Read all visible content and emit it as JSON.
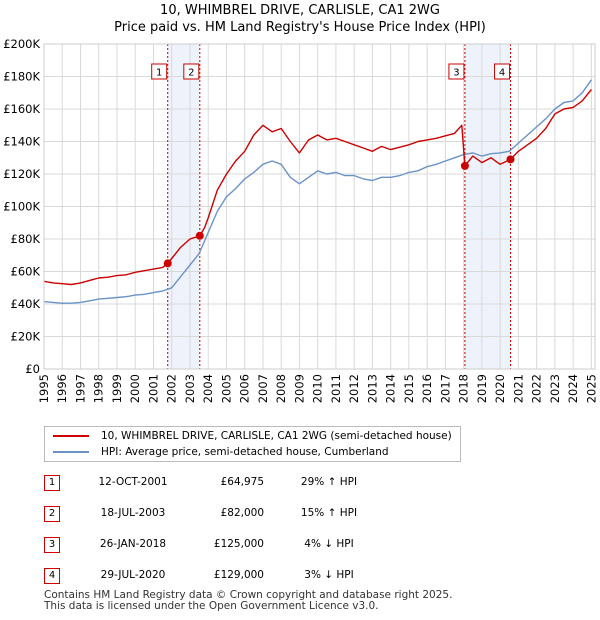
{
  "title_line1": "10, WHIMBREL DRIVE, CARLISLE, CA1 2WG",
  "title_line2": "Price paid vs. HM Land Registry's House Price Index (HPI)",
  "colors": {
    "price_line": "#cc0000",
    "hpi_line": "#6b93c8",
    "band_fill": "#eef2fb",
    "marker": "#cc0000",
    "grid": "#d9d9d9"
  },
  "chart_data": {
    "type": "line",
    "xlim": [
      1995,
      2025.2
    ],
    "ylim": [
      0,
      200000
    ],
    "x_ticks": [
      "1995",
      "1996",
      "1997",
      "1998",
      "1999",
      "2000",
      "2001",
      "2002",
      "2003",
      "2004",
      "2005",
      "2006",
      "2007",
      "2008",
      "2009",
      "2010",
      "2011",
      "2012",
      "2013",
      "2014",
      "2015",
      "2016",
      "2017",
      "2018",
      "2019",
      "2020",
      "2021",
      "2022",
      "2023",
      "2024",
      "2025"
    ],
    "y_ticks": [
      {
        "value": 0,
        "label": "£0"
      },
      {
        "value": 20000,
        "label": "£20K"
      },
      {
        "value": 40000,
        "label": "£40K"
      },
      {
        "value": 60000,
        "label": "£60K"
      },
      {
        "value": 80000,
        "label": "£80K"
      },
      {
        "value": 100000,
        "label": "£100K"
      },
      {
        "value": 120000,
        "label": "£120K"
      },
      {
        "value": 140000,
        "label": "£140K"
      },
      {
        "value": 160000,
        "label": "£160K"
      },
      {
        "value": 180000,
        "label": "£180K"
      },
      {
        "value": 200000,
        "label": "£200K"
      }
    ],
    "series": [
      {
        "name": "10, WHIMBREL DRIVE, CARLISLE, CA1 2WG (semi-detached house)",
        "color": "#cc0000",
        "x": [
          1995.0,
          1995.5,
          1996.0,
          1996.5,
          1997.0,
          1997.5,
          1998.0,
          1998.5,
          1999.0,
          1999.5,
          2000.0,
          2000.5,
          2001.0,
          2001.5,
          2001.78,
          2002.0,
          2002.5,
          2003.0,
          2003.54,
          2003.8,
          2004.0,
          2004.5,
          2005.0,
          2005.5,
          2006.0,
          2006.5,
          2007.0,
          2007.5,
          2008.0,
          2008.5,
          2009.0,
          2009.5,
          2010.0,
          2010.5,
          2011.0,
          2011.5,
          2012.0,
          2012.5,
          2013.0,
          2013.5,
          2014.0,
          2014.5,
          2015.0,
          2015.5,
          2016.0,
          2016.5,
          2017.0,
          2017.5,
          2017.9,
          2018.07,
          2018.5,
          2019.0,
          2019.5,
          2020.0,
          2020.57,
          2021.0,
          2021.5,
          2022.0,
          2022.5,
          2023.0,
          2023.5,
          2024.0,
          2024.5,
          2025.0
        ],
        "y": [
          54000,
          53000,
          52500,
          52000,
          53000,
          54500,
          56000,
          56500,
          57500,
          58000,
          59500,
          60500,
          61500,
          62500,
          64975,
          68000,
          75000,
          80000,
          82000,
          87000,
          93000,
          110000,
          120000,
          128000,
          134000,
          144000,
          150000,
          146000,
          148000,
          140000,
          133000,
          141000,
          144000,
          141000,
          142000,
          140000,
          138000,
          136000,
          134000,
          137000,
          135000,
          136500,
          138000,
          140000,
          141000,
          142000,
          143500,
          145000,
          150000,
          125000,
          131000,
          127000,
          130000,
          126000,
          129000,
          134000,
          138000,
          142000,
          148000,
          157000,
          160000,
          161000,
          165000,
          172000
        ]
      },
      {
        "name": "HPI: Average price, semi-detached house, Cumberland",
        "color": "#6b93c8",
        "x": [
          1995.0,
          1995.5,
          1996.0,
          1996.5,
          1997.0,
          1997.5,
          1998.0,
          1998.5,
          1999.0,
          1999.5,
          2000.0,
          2000.5,
          2001.0,
          2001.5,
          2002.0,
          2002.5,
          2003.0,
          2003.5,
          2004.0,
          2004.5,
          2005.0,
          2005.5,
          2006.0,
          2006.5,
          2007.0,
          2007.5,
          2008.0,
          2008.5,
          2009.0,
          2009.5,
          2010.0,
          2010.5,
          2011.0,
          2011.5,
          2012.0,
          2012.5,
          2013.0,
          2013.5,
          2014.0,
          2014.5,
          2015.0,
          2015.5,
          2016.0,
          2016.5,
          2017.0,
          2017.5,
          2018.0,
          2018.5,
          2019.0,
          2019.5,
          2020.0,
          2020.5,
          2021.0,
          2021.5,
          2022.0,
          2022.5,
          2023.0,
          2023.5,
          2024.0,
          2024.5,
          2025.0
        ],
        "y": [
          41500,
          41000,
          40500,
          40500,
          41000,
          42000,
          43000,
          43500,
          44000,
          44500,
          45500,
          46000,
          47000,
          48000,
          50000,
          57000,
          64000,
          71000,
          84000,
          97000,
          106000,
          111000,
          117000,
          121000,
          126000,
          128000,
          126000,
          118000,
          114000,
          118000,
          122000,
          120000,
          121000,
          119000,
          119000,
          117000,
          116000,
          118000,
          118000,
          119000,
          121000,
          122000,
          124500,
          126000,
          128000,
          130000,
          132000,
          133000,
          131000,
          132500,
          133000,
          134000,
          139000,
          144000,
          149000,
          154000,
          160000,
          164000,
          165000,
          170000,
          178000
        ]
      }
    ],
    "transactions": [
      {
        "id": "1",
        "date": "12-OCT-2001",
        "x": 2001.78,
        "price": "£64,975",
        "value": 64975,
        "hpi": "29% ↑ HPI"
      },
      {
        "id": "2",
        "date": "18-JUL-2003",
        "x": 2003.54,
        "price": "£82,000",
        "value": 82000,
        "hpi": "15% ↑ HPI"
      },
      {
        "id": "3",
        "date": "26-JAN-2018",
        "x": 2018.07,
        "price": "£125,000",
        "value": 125000,
        "hpi": "4% ↓ HPI"
      },
      {
        "id": "4",
        "date": "29-JUL-2020",
        "x": 2020.57,
        "price": "£129,000",
        "value": 129000,
        "hpi": "3% ↓ HPI"
      }
    ],
    "shaded_bands": [
      [
        2001.78,
        2003.54
      ],
      [
        2018.07,
        2020.57
      ]
    ]
  },
  "legend": {
    "price_label": "10, WHIMBREL DRIVE, CARLISLE, CA1 2WG (semi-detached house)",
    "hpi_label": "HPI: Average price, semi-detached house, Cumberland"
  },
  "footer": {
    "line1": "Contains HM Land Registry data © Crown copyright and database right 2025.",
    "line2": "This data is licensed under the Open Government Licence v3.0."
  }
}
